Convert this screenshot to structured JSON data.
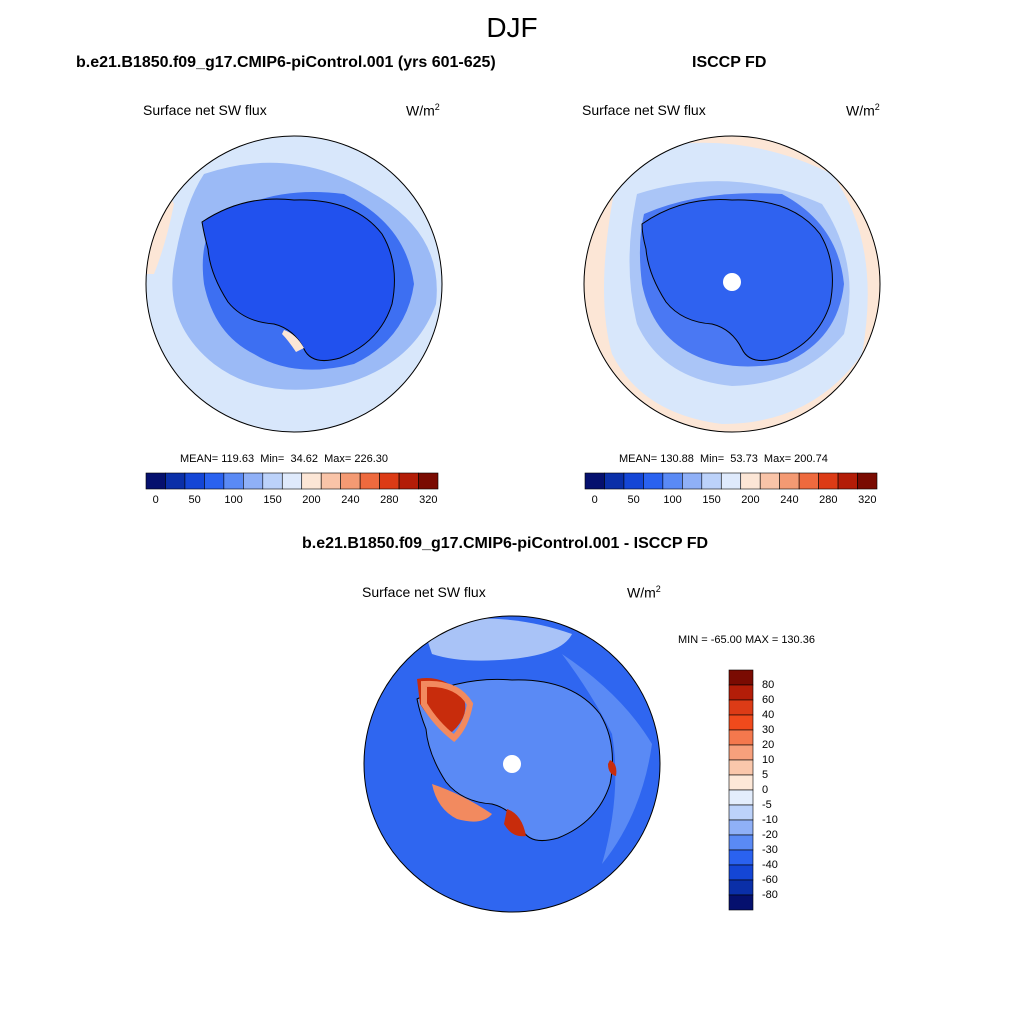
{
  "figure": {
    "title": "DJF"
  },
  "panels": [
    {
      "title": "b.e21.B1850.f09_g17.CMIP6-piControl.001 (yrs 601-625)",
      "variable": "Surface net SW flux",
      "units_base": "W/m",
      "units_exp": "2",
      "stats": "MEAN= 119.63  Min=  34.62  Max= 226.30"
    },
    {
      "title": "ISCCP FD",
      "variable": "Surface net SW flux",
      "units_base": "W/m",
      "units_exp": "2",
      "stats": "MEAN= 130.88  Min=  53.73  Max= 200.74"
    },
    {
      "title": "b.e21.B1850.f09_g17.CMIP6-piControl.001 - ISCCP FD",
      "variable": "Surface net SW flux",
      "units_base": "W/m",
      "units_exp": "2",
      "stats": "MIN = -65.00 MAX = 130.36"
    }
  ],
  "colorbar_abs": {
    "labels": [
      "0",
      "50",
      "100",
      "150",
      "200",
      "240",
      "280",
      "320"
    ],
    "colors": [
      "#05106e",
      "#0a2fa8",
      "#1446d6",
      "#2a62f0",
      "#5a8af5",
      "#8fb0f7",
      "#bcd2fa",
      "#dfeafc",
      "#fce6d6",
      "#f9c4a8",
      "#f49a73",
      "#ee6a3e",
      "#dc3b16",
      "#b31d08",
      "#7a0b02"
    ]
  },
  "colorbar_diff": {
    "labels": [
      "80",
      "60",
      "40",
      "30",
      "20",
      "10",
      "5",
      "0",
      "-5",
      "-10",
      "-20",
      "-30",
      "-40",
      "-60",
      "-80"
    ],
    "colors": [
      "#7a0b02",
      "#b31d08",
      "#dc3b16",
      "#f04a1c",
      "#f4784d",
      "#f7a07c",
      "#fac7ab",
      "#fde8d8",
      "#e3edfc",
      "#bcd2fa",
      "#8fb0f7",
      "#5a8af5",
      "#2a62f0",
      "#1446d6",
      "#0a2fa8",
      "#05106e"
    ]
  },
  "map_colors": {
    "model": {
      "land": "#2151ee",
      "coast_band": "#3d6ff2",
      "mid_ocean": "#9bbaf6",
      "outer_ocean": "#d8e7fb",
      "warm_patch": "#fce6d6"
    },
    "obs": {
      "land": "#2f62f0",
      "coast_band": "#4a78f3",
      "mid_ocean": "#aac5f7",
      "outer_ocean": "#d8e7fb",
      "warm_patch": "#fce6d6",
      "pole_hole": "#ffffff"
    },
    "diff": {
      "ocean": "#2f66f0",
      "lighter": "#5a8af5",
      "pale": "#a9c3f7",
      "warm": "#f28a5f",
      "hot": "#c82c0c",
      "pole_hole": "#ffffff"
    }
  }
}
